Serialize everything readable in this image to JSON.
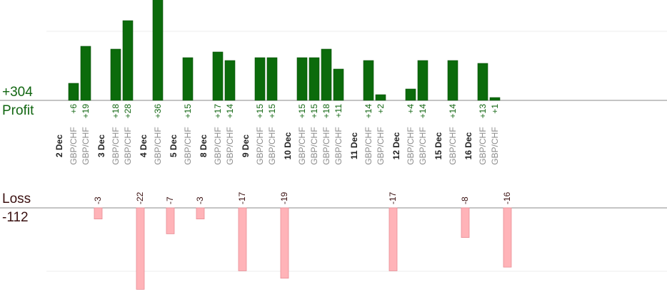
{
  "summary": {
    "profit_total": "+304",
    "profit_label": "Profit",
    "loss_label": "Loss",
    "loss_total": "-112"
  },
  "colors": {
    "profit_bar": "#0b6b0b",
    "profit_text": "#116611",
    "loss_bar": "#ffb3b8",
    "loss_text": "#3a1010"
  },
  "chart_data": {
    "type": "bar",
    "pair_label": "GBP/CHF",
    "ylim_profit": [
      0,
      36
    ],
    "ylim_loss": [
      -28,
      0
    ],
    "groups": [
      {
        "date": "2 Dec",
        "profits": [
          6,
          19
        ],
        "losses": [
          -3
        ]
      },
      {
        "date": "3 Dec",
        "profits": [
          18,
          28
        ],
        "losses": [
          -22
        ]
      },
      {
        "date": "4 Dec",
        "profits": [
          36
        ],
        "losses": [
          -7
        ]
      },
      {
        "date": "5 Dec",
        "profits": [
          15
        ],
        "losses": [
          -3
        ]
      },
      {
        "date": "8 Dec",
        "profits": [
          17,
          14
        ],
        "losses": [
          -17
        ]
      },
      {
        "date": "9 Dec",
        "profits": [
          15,
          15
        ],
        "losses": [
          -19
        ]
      },
      {
        "date": "10 Dec",
        "profits": [
          15,
          15,
          18,
          11
        ],
        "losses": []
      },
      {
        "date": "11 Dec",
        "profits": [
          14,
          2
        ],
        "losses": [
          -17
        ]
      },
      {
        "date": "12 Dec",
        "profits": [
          4,
          14
        ],
        "losses": []
      },
      {
        "date": "15 Dec",
        "profits": [
          14
        ],
        "losses": [
          -8
        ]
      },
      {
        "date": "16 Dec",
        "profits": [
          13,
          1
        ],
        "losses": [
          -16
        ]
      }
    ]
  }
}
